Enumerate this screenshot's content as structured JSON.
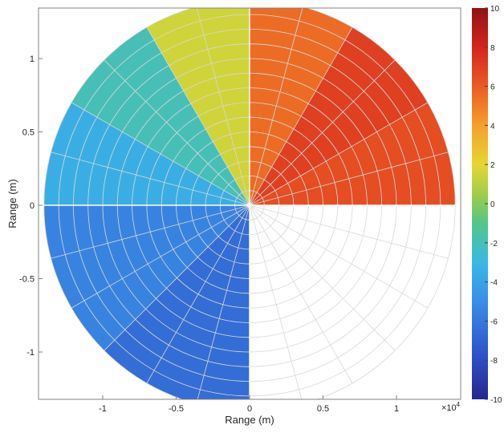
{
  "chart_data": {
    "type": "heatmap",
    "subtype": "polar-ppi-radar",
    "title": "",
    "xlabel": "Range (m)",
    "ylabel": "Range (m)",
    "x_scale_label": "×10^4",
    "xlim": [
      -1.4,
      1.4
    ],
    "ylim": [
      -1.4,
      1.4
    ],
    "x_ticks": [
      -1,
      -0.5,
      0,
      0.5,
      1
    ],
    "x_tick_labels": [
      "-1",
      "-0.5",
      "0",
      "0.5",
      "1"
    ],
    "y_ticks": [
      1,
      0.5,
      0,
      -0.5,
      -1
    ],
    "y_tick_labels": [
      "1",
      "0.5",
      "0",
      "-0.5",
      "-1"
    ],
    "max_range": 1.4,
    "range_ring_step": 0.1,
    "azimuth_spoke_step_deg": 15,
    "colorbar": {
      "colormap": "parula/jet-like",
      "min": -10,
      "max": 10,
      "ticks": [
        10,
        8,
        6,
        4,
        2,
        0,
        -2,
        -4,
        -6,
        -8,
        -10
      ],
      "tick_labels": [
        "10",
        "8",
        "6",
        "4",
        "2",
        "0",
        "-2",
        "-4",
        "-6",
        "-8",
        "-10"
      ]
    },
    "sectors": [
      {
        "az_from": 0,
        "az_to": 30,
        "value": 5.5
      },
      {
        "az_from": 30,
        "az_to": 60,
        "value": 7.0
      },
      {
        "az_from": 60,
        "az_to": 90,
        "value": 6.5
      },
      {
        "az_from": 90,
        "az_to": 180,
        "value": null
      },
      {
        "az_from": 180,
        "az_to": 225,
        "value": -6.5
      },
      {
        "az_from": 225,
        "az_to": 270,
        "value": -5.5
      },
      {
        "az_from": 270,
        "az_to": 300,
        "value": -3.5
      },
      {
        "az_from": 300,
        "az_to": 330,
        "value": -2.0
      },
      {
        "az_from": 330,
        "az_to": 360,
        "value": 1.5
      }
    ],
    "grid": true,
    "legend": "colorbar right"
  }
}
